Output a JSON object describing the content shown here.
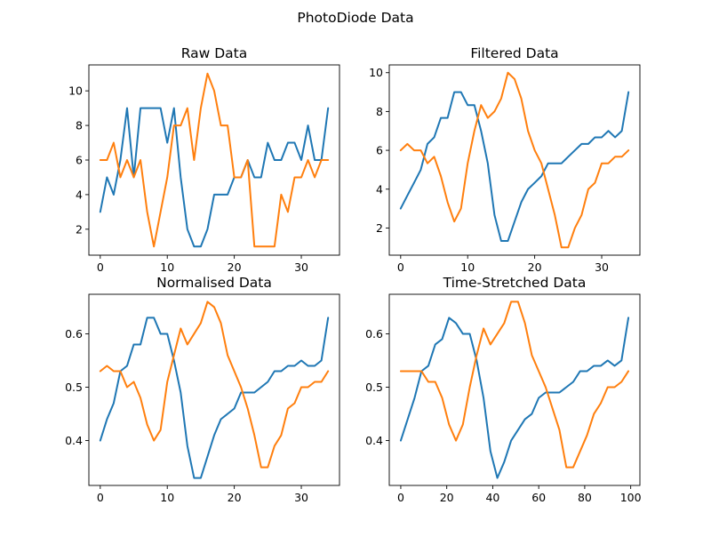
{
  "figure": {
    "title": "PhotoDiode Data"
  },
  "colors": {
    "series_1": "#1f77b4",
    "series_2": "#ff7f0e"
  },
  "chart_data": [
    {
      "type": "line",
      "title": "Raw Data",
      "xlabel": "",
      "ylabel": "",
      "xlim": [
        -1.7,
        35.7
      ],
      "ylim": [
        0.5,
        11.5
      ],
      "xticks": [
        0,
        10,
        20,
        30
      ],
      "yticks": [
        2,
        4,
        6,
        8,
        10
      ],
      "grid": false,
      "series": [
        {
          "values": [
            3,
            5,
            4,
            6,
            9,
            5,
            9,
            9,
            9,
            9,
            7,
            9,
            5,
            2,
            1,
            1,
            2,
            4,
            4,
            4,
            5,
            5,
            6,
            5,
            5,
            7,
            6,
            6,
            7,
            7,
            6,
            8,
            6,
            6,
            9
          ]
        },
        {
          "values": [
            6,
            6,
            7,
            5,
            6,
            5,
            6,
            3,
            1,
            3,
            5,
            8,
            8,
            9,
            6,
            9,
            11,
            10,
            8,
            8,
            5,
            5,
            6,
            1,
            1,
            1,
            1,
            4,
            3,
            5,
            5,
            6,
            5,
            6,
            6
          ]
        }
      ]
    },
    {
      "type": "line",
      "title": "Filtered Data",
      "xlabel": "",
      "ylabel": "",
      "xlim": [
        -1.7,
        35.7
      ],
      "ylim": [
        0.6,
        10.4
      ],
      "xticks": [
        0,
        10,
        20,
        30
      ],
      "yticks": [
        2,
        4,
        6,
        8,
        10
      ],
      "grid": false,
      "series": [
        {
          "values": [
            3,
            3.67,
            4.33,
            5,
            6.33,
            6.67,
            7.67,
            7.67,
            9,
            9,
            8.33,
            8.33,
            7,
            5.33,
            2.67,
            1.33,
            1.33,
            2.33,
            3.33,
            4,
            4.33,
            4.67,
            5.33,
            5.33,
            5.33,
            5.67,
            6,
            6.33,
            6.33,
            6.67,
            6.67,
            7,
            6.67,
            7,
            9
          ]
        },
        {
          "values": [
            6,
            6.33,
            6,
            6,
            5.33,
            5.67,
            4.67,
            3.33,
            2.33,
            3,
            5.33,
            7,
            8.33,
            7.67,
            8,
            8.67,
            10,
            9.67,
            8.67,
            7,
            6,
            5.33,
            4,
            2.67,
            1,
            1,
            2,
            2.67,
            4,
            4.33,
            5.33,
            5.33,
            5.67,
            5.67,
            6
          ]
        }
      ]
    },
    {
      "type": "line",
      "title": "Normalised Data",
      "xlabel": "",
      "ylabel": "",
      "xlim": [
        -1.7,
        35.7
      ],
      "ylim": [
        0.316,
        0.674
      ],
      "xticks": [
        0,
        10,
        20,
        30
      ],
      "yticks": [
        0.4,
        0.5,
        0.6
      ],
      "grid": false,
      "series": [
        {
          "values": [
            0.4,
            0.44,
            0.47,
            0.53,
            0.54,
            0.58,
            0.58,
            0.63,
            0.63,
            0.6,
            0.6,
            0.55,
            0.49,
            0.39,
            0.33,
            0.33,
            0.37,
            0.41,
            0.44,
            0.45,
            0.46,
            0.49,
            0.49,
            0.49,
            0.5,
            0.51,
            0.53,
            0.53,
            0.54,
            0.54,
            0.55,
            0.54,
            0.54,
            0.55,
            0.63
          ]
        },
        {
          "values": [
            0.53,
            0.54,
            0.53,
            0.53,
            0.5,
            0.51,
            0.48,
            0.43,
            0.4,
            0.42,
            0.51,
            0.56,
            0.61,
            0.58,
            0.6,
            0.62,
            0.66,
            0.65,
            0.62,
            0.56,
            0.53,
            0.5,
            0.46,
            0.41,
            0.35,
            0.35,
            0.39,
            0.41,
            0.46,
            0.47,
            0.5,
            0.5,
            0.51,
            0.51,
            0.53
          ]
        }
      ]
    },
    {
      "type": "line",
      "title": "Time-Stretched Data",
      "xlabel": "",
      "ylabel": "",
      "xlim": [
        -5,
        104
      ],
      "ylim": [
        0.316,
        0.674
      ],
      "xticks": [
        0,
        20,
        40,
        60,
        80,
        100
      ],
      "yticks": [
        0.4,
        0.5,
        0.6
      ],
      "grid": false,
      "series": [
        {
          "x": [
            0,
            3,
            6,
            9,
            12,
            15,
            18,
            21,
            24,
            27,
            30,
            33,
            36,
            39,
            42,
            45,
            48,
            51,
            54,
            57,
            60,
            63,
            66,
            69,
            72,
            75,
            78,
            81,
            84,
            87,
            90,
            93,
            96,
            99
          ],
          "values": [
            0.4,
            0.44,
            0.48,
            0.53,
            0.54,
            0.58,
            0.59,
            0.63,
            0.62,
            0.6,
            0.6,
            0.55,
            0.48,
            0.38,
            0.33,
            0.36,
            0.4,
            0.42,
            0.44,
            0.45,
            0.48,
            0.49,
            0.49,
            0.49,
            0.5,
            0.51,
            0.53,
            0.53,
            0.54,
            0.54,
            0.55,
            0.54,
            0.55,
            0.63
          ]
        },
        {
          "x": [
            0,
            3,
            6,
            9,
            12,
            15,
            18,
            21,
            24,
            27,
            30,
            33,
            36,
            39,
            42,
            45,
            48,
            51,
            54,
            57,
            60,
            63,
            66,
            69,
            72,
            75,
            78,
            81,
            84,
            87,
            90,
            93,
            96,
            99
          ],
          "values": [
            0.53,
            0.53,
            0.53,
            0.53,
            0.51,
            0.51,
            0.48,
            0.43,
            0.4,
            0.43,
            0.5,
            0.56,
            0.61,
            0.58,
            0.6,
            0.62,
            0.66,
            0.66,
            0.62,
            0.56,
            0.53,
            0.5,
            0.46,
            0.42,
            0.35,
            0.35,
            0.38,
            0.41,
            0.45,
            0.47,
            0.5,
            0.5,
            0.51,
            0.53
          ]
        }
      ]
    }
  ]
}
